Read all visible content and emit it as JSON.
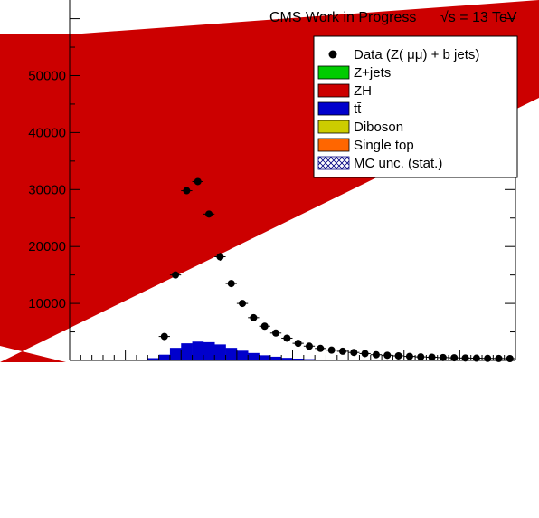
{
  "header": {
    "experiment": "CMS Work in Progress",
    "energy": "√s = 13 TeV"
  },
  "chart_data": {
    "type": "bar",
    "ylim": [
      0,
      62000
    ],
    "yticks": [
      10000,
      20000,
      30000,
      40000,
      50000
    ],
    "ytick_labels": [
      "10000",
      "20000",
      "30000",
      "40000",
      "50000"
    ],
    "xlabel": "",
    "ylabel": "",
    "grid": false,
    "legend_position": "top-right",
    "legend": [
      {
        "label": "Data (Z( μμ) + b jets)",
        "marker": "point",
        "color": "#000000"
      },
      {
        "label": "Z+jets",
        "marker": "box",
        "color": "#00cc00"
      },
      {
        "label": "ZH",
        "marker": "box",
        "color": "#cc0000"
      },
      {
        "label": "tt̄",
        "marker": "box",
        "color": "#0000cc"
      },
      {
        "label": "Diboson",
        "marker": "box",
        "color": "#cccc00"
      },
      {
        "label": "Single top",
        "marker": "box",
        "color": "#ff6600"
      },
      {
        "label": "MC unc. (stat.)",
        "marker": "hatch",
        "color": "#000080"
      }
    ],
    "overlay_polygon_color": "#cc0000",
    "bin_count": 40,
    "data": {
      "name": "Data (Z( μμ) + b jets)",
      "bins": [
        8,
        9,
        10,
        11,
        12,
        13,
        14,
        15,
        16,
        17,
        18,
        19,
        20,
        21,
        22,
        23,
        24,
        25,
        26,
        27,
        28,
        29,
        30,
        31,
        32,
        33,
        34,
        35,
        36,
        37,
        38,
        39
      ],
      "values": [
        4200,
        15000,
        29800,
        31400,
        25700,
        18200,
        13500,
        10000,
        7500,
        6000,
        4800,
        3900,
        3000,
        2500,
        2100,
        1800,
        1600,
        1400,
        1200,
        1000,
        900,
        800,
        700,
        620,
        560,
        500,
        460,
        420,
        390,
        360,
        340,
        320
      ],
      "errors": [
        300,
        400,
        550,
        560,
        500,
        700,
        400,
        350,
        300,
        250,
        230,
        210,
        190,
        170,
        160,
        150,
        140,
        130,
        120,
        110,
        100,
        95,
        90,
        85,
        80,
        75,
        70,
        65,
        60,
        58,
        55,
        52
      ]
    },
    "ttbar": {
      "name": "tt̄",
      "bins": [
        7,
        8,
        9,
        10,
        11,
        12,
        13,
        14,
        15,
        16,
        17,
        18,
        19,
        20,
        21,
        22,
        23,
        24
      ],
      "values": [
        400,
        1000,
        2200,
        3000,
        3300,
        3200,
        2800,
        2200,
        1700,
        1300,
        900,
        650,
        450,
        320,
        230,
        160,
        110,
        80
      ]
    }
  }
}
